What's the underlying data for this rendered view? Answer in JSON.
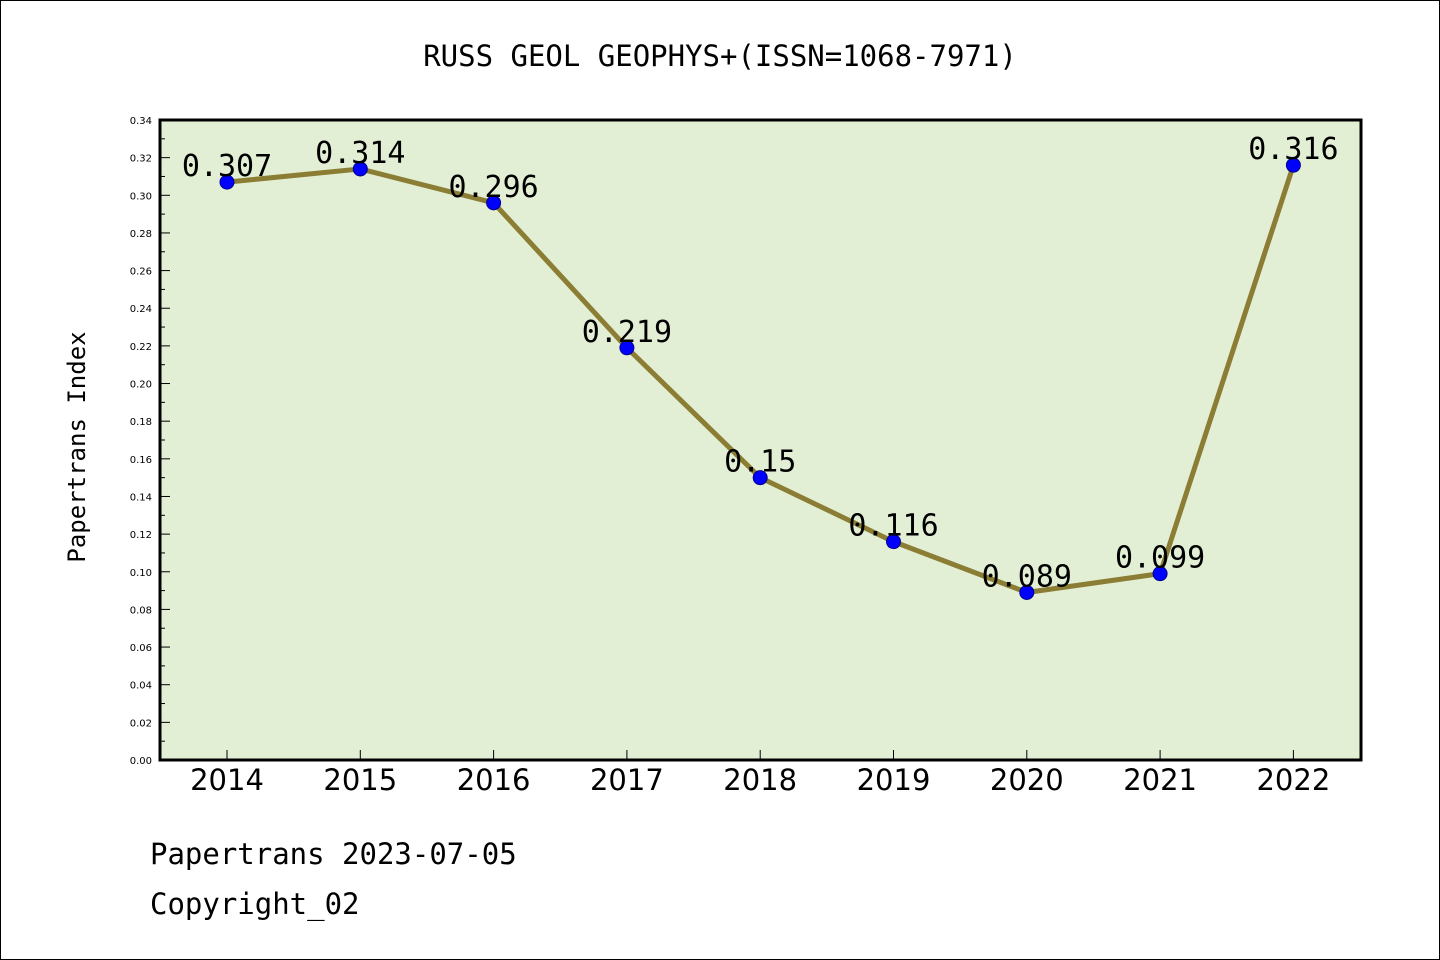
{
  "chart_data": {
    "type": "line",
    "title": "RUSS GEOL GEOPHYS+(ISSN=1068-7971)",
    "xlabel": "",
    "ylabel": "Papertrans Index",
    "categories": [
      "2014",
      "2015",
      "2016",
      "2017",
      "2018",
      "2019",
      "2020",
      "2021",
      "2022"
    ],
    "series": [
      {
        "values": [
          0.307,
          0.314,
          0.296,
          0.219,
          0.15,
          0.116,
          0.089,
          0.099,
          0.316
        ],
        "data_labels": [
          "0.307",
          "0.314",
          "0.296",
          "0.219",
          "0.15",
          "0.116",
          "0.089",
          "0.099",
          "0.316"
        ]
      }
    ],
    "ylim": [
      0,
      0.34
    ],
    "yticks": [
      "0.00",
      "0.02",
      "0.04",
      "0.06",
      "0.08",
      "0.10",
      "0.12",
      "0.14",
      "0.16",
      "0.18",
      "0.20",
      "0.22",
      "0.24",
      "0.26",
      "0.28",
      "0.30",
      "0.32",
      "0.34"
    ],
    "grid": false,
    "legend": "none",
    "colors": {
      "plot_background": "#e2efd4",
      "line": "#8b7d33",
      "marker": "#0000ff"
    }
  },
  "footer": {
    "line1": "Papertrans 2023-07-05",
    "line2": "Copyright_02"
  }
}
